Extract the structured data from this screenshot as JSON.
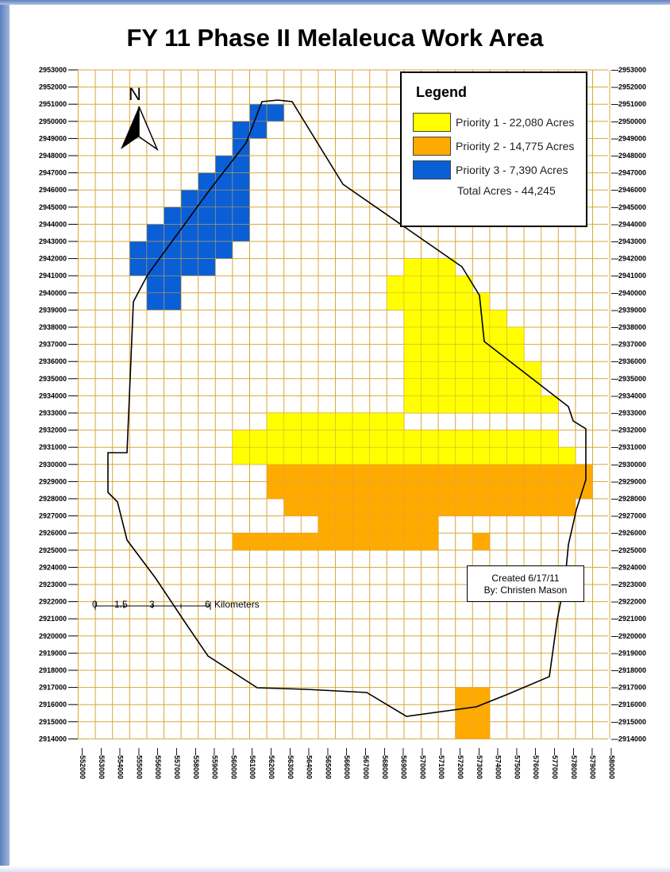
{
  "title": "FY 11 Phase II Melaleuca Work Area",
  "legend": {
    "title": "Legend",
    "items": [
      {
        "label": "Priority 1 - 22,080 Acres",
        "color": "#ffff00"
      },
      {
        "label": "Priority 2 - 14,775 Acres",
        "color": "#ffaa00"
      },
      {
        "label": "Priority 3 - 7,390 Acres",
        "color": "#0a5fd6"
      }
    ],
    "total": "Total Acres - 44,245"
  },
  "north_arrow": "N",
  "scale_bar": {
    "ticks": [
      "0",
      "1.5",
      "3",
      "6"
    ],
    "unit": "Kilometers"
  },
  "credit": {
    "line1": "Created 6/17/11",
    "line2": "By: Christen Mason"
  },
  "y_labels": [
    "2953000",
    "2952000",
    "2951000",
    "2950000",
    "2949000",
    "2948000",
    "2947000",
    "2946000",
    "2945000",
    "2944000",
    "2943000",
    "2942000",
    "2941000",
    "2940000",
    "2939000",
    "2938000",
    "2937000",
    "2936000",
    "2935000",
    "2934000",
    "2933000",
    "2932000",
    "2931000",
    "2930000",
    "2929000",
    "2928000",
    "2927000",
    "2926000",
    "2925000",
    "2924000",
    "2923000",
    "2922000",
    "2921000",
    "2920000",
    "2919000",
    "2918000",
    "2917000",
    "2916000",
    "2915000",
    "2914000"
  ],
  "x_labels": [
    "552000",
    "553000",
    "554000",
    "555000",
    "556000",
    "557000",
    "558000",
    "559000",
    "560000",
    "561000",
    "562000",
    "563000",
    "564000",
    "565000",
    "566000",
    "567000",
    "568000",
    "569000",
    "570000",
    "571000",
    "572000",
    "573000",
    "574000",
    "575000",
    "576000",
    "577000",
    "578000",
    "579000",
    "580000"
  ],
  "colors": {
    "grid": "#d9a73a",
    "priority1": "#ffff00",
    "priority2": "#ffaa00",
    "priority3": "#0a5fd6",
    "frame": "#5d7fc0"
  }
}
